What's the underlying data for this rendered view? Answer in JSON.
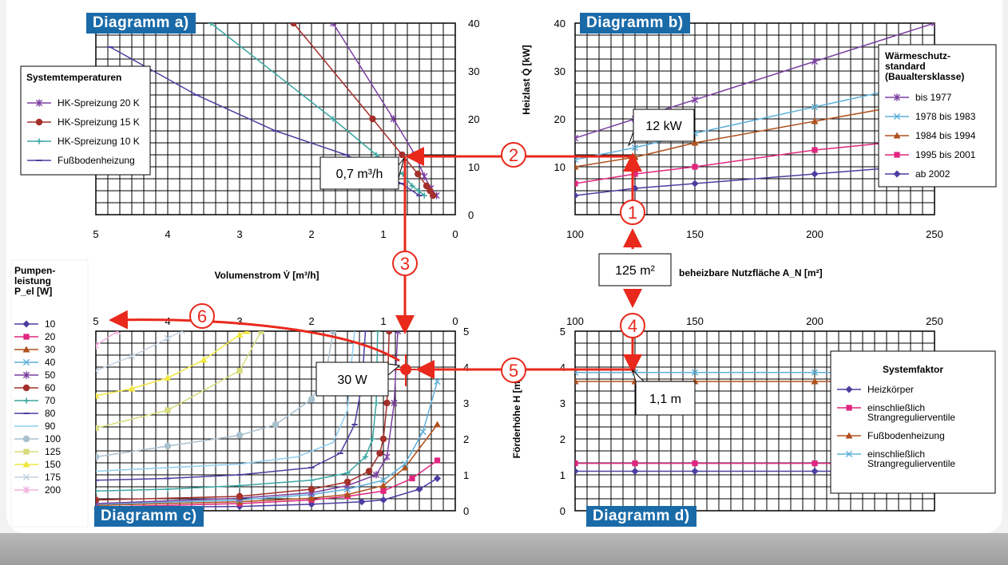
{
  "diagram_labels": {
    "a": "Diagramm a)",
    "b": "Diagramm b)",
    "c": "Diagramm c)",
    "d": "Diagramm d)"
  },
  "colors": {
    "red": "#e8291c",
    "badge": "#1a6aa8",
    "grid": "#000000"
  },
  "annotations": {
    "step_numbers": [
      "1",
      "2",
      "3",
      "4",
      "5",
      "6"
    ],
    "flow_box": "0,7 m³/h",
    "load_box": "12 kW",
    "area_box": "125 m²",
    "power_box": "30 W",
    "head_box": "1,1 m"
  },
  "chart_data": [
    {
      "id": "a",
      "type": "line",
      "xlabel": "Volumenstrom V̇ [m³/h]",
      "ylabel": "Heizlast Q̇ [kW]",
      "xlim": [
        5,
        0
      ],
      "ylim": [
        0,
        40
      ],
      "x_ticks": [
        "5",
        "4",
        "3",
        "2",
        "1",
        "0"
      ],
      "y_ticks": [
        "0",
        "10",
        "20",
        "30",
        "40"
      ],
      "legend_title": "Systemtemperaturen",
      "legend_position": "left",
      "grid": true,
      "series": [
        {
          "name": "HK-Spreizung 20 K",
          "color": "#7b3fa0",
          "marker": "star",
          "points": [
            [
              1.7,
              40
            ],
            [
              0.86,
              20
            ],
            [
              0.56,
              12.5
            ],
            [
              0.43,
              8
            ],
            [
              0.34,
              5.5
            ],
            [
              0.26,
              4
            ]
          ]
        },
        {
          "name": "HK-Spreizung 15 K",
          "color": "#a3302b",
          "marker": "circle",
          "points": [
            [
              2.25,
              40
            ],
            [
              1.15,
              20
            ],
            [
              0.74,
              12.5
            ],
            [
              0.52,
              8.5
            ],
            [
              0.4,
              6
            ],
            [
              0.35,
              5
            ],
            [
              0.31,
              4
            ]
          ]
        },
        {
          "name": "HK-Spreizung 10 K",
          "color": "#3aa6a0",
          "marker": "plus",
          "points": [
            [
              3.4,
              40
            ],
            [
              1.7,
              20
            ],
            [
              1.1,
              12.5
            ],
            [
              0.73,
              8.5
            ],
            [
              0.6,
              6
            ],
            [
              0.51,
              5
            ],
            [
              0.43,
              4
            ]
          ]
        },
        {
          "name": "Fußbodenheizung",
          "color": "#4b3ea0",
          "marker": "dash",
          "points": [
            [
              4.8,
              35
            ],
            [
              3.6,
              25
            ],
            [
              2.5,
              17.5
            ],
            [
              1.52,
              12.5
            ],
            [
              1.05,
              9
            ],
            [
              0.75,
              6.5
            ],
            [
              0.5,
              4
            ]
          ]
        }
      ]
    },
    {
      "id": "b",
      "type": "line",
      "xlabel": "beheizbare Nutzfläche A_N [m²]",
      "ylabel": "",
      "xlim": [
        100,
        250
      ],
      "ylim": [
        0,
        40
      ],
      "x_ticks": [
        "100",
        "150",
        "200",
        "250"
      ],
      "y_ticks": [
        "10",
        "20",
        "30",
        "40"
      ],
      "legend_title": "Wärmeschutz-\nstandard\n(Baualtersklasse)",
      "legend_position": "top-right",
      "grid": true,
      "series": [
        {
          "name": "bis 1977",
          "color": "#7b3fa0",
          "marker": "star",
          "points": [
            [
              100,
              16
            ],
            [
              125,
              20
            ],
            [
              150,
              24
            ],
            [
              200,
              32
            ],
            [
              250,
              40
            ]
          ]
        },
        {
          "name": "1978 bis 1983",
          "color": "#5fb0d8",
          "marker": "x",
          "points": [
            [
              100,
              11.5
            ],
            [
              125,
              14
            ],
            [
              150,
              17
            ],
            [
              200,
              22.5
            ],
            [
              250,
              28
            ]
          ]
        },
        {
          "name": "1984 bis 1994",
          "color": "#b0501c",
          "marker": "triangle",
          "points": [
            [
              100,
              10
            ],
            [
              125,
              12
            ],
            [
              150,
              15
            ],
            [
              200,
              19.5
            ],
            [
              250,
              24
            ]
          ]
        },
        {
          "name": "1995 bis 2001",
          "color": "#e0267f",
          "marker": "square",
          "points": [
            [
              100,
              6.5
            ],
            [
              125,
              8.5
            ],
            [
              150,
              10
            ],
            [
              200,
              13.5
            ],
            [
              250,
              16
            ]
          ]
        },
        {
          "name": "ab 2002",
          "color": "#4b3ea0",
          "marker": "diamond",
          "points": [
            [
              100,
              4
            ],
            [
              125,
              5.5
            ],
            [
              150,
              6.5
            ],
            [
              200,
              8.5
            ],
            [
              250,
              10.5
            ]
          ]
        }
      ]
    },
    {
      "id": "c",
      "type": "line",
      "xlabel": "",
      "ylabel": "Förderhöhe H [m]",
      "xlim": [
        5,
        0
      ],
      "ylim": [
        0,
        5
      ],
      "x_ticks": [
        "5",
        "4",
        "3",
        "2",
        "1",
        "0"
      ],
      "y_ticks": [
        "0",
        "1",
        "2",
        "3",
        "4",
        "5"
      ],
      "legend_title": "Pumpen-\nleistung\nP_el [W]",
      "legend_position": "left",
      "grid": true,
      "series": [
        {
          "name": "10",
          "color": "#4b3ea0",
          "marker": "diamond",
          "points": [
            [
              5,
              0.08
            ],
            [
              3,
              0.12
            ],
            [
              2,
              0.18
            ],
            [
              1.3,
              0.25
            ],
            [
              1,
              0.3
            ],
            [
              0.5,
              0.6
            ],
            [
              0.25,
              0.9
            ]
          ]
        },
        {
          "name": "20",
          "color": "#e0267f",
          "marker": "square",
          "points": [
            [
              5,
              0.1
            ],
            [
              3,
              0.2
            ],
            [
              2,
              0.3
            ],
            [
              1.5,
              0.4
            ],
            [
              1,
              0.55
            ],
            [
              0.6,
              0.9
            ],
            [
              0.25,
              1.4
            ]
          ]
        },
        {
          "name": "30",
          "color": "#b0501c",
          "marker": "triangle",
          "points": [
            [
              5,
              0.15
            ],
            [
              3,
              0.25
            ],
            [
              2,
              0.35
            ],
            [
              1.5,
              0.45
            ],
            [
              1,
              0.7
            ],
            [
              0.7,
              1.2
            ],
            [
              0.25,
              2.4
            ]
          ]
        },
        {
          "name": "40",
          "color": "#5fb0d8",
          "marker": "x",
          "points": [
            [
              5,
              0.18
            ],
            [
              3,
              0.3
            ],
            [
              2,
              0.45
            ],
            [
              1.5,
              0.6
            ],
            [
              1,
              0.85
            ],
            [
              0.7,
              1.3
            ],
            [
              0.45,
              2.2
            ],
            [
              0.25,
              3.6
            ]
          ]
        },
        {
          "name": "50",
          "color": "#7b3fa0",
          "marker": "star",
          "points": [
            [
              5,
              0.2
            ],
            [
              3,
              0.35
            ],
            [
              2,
              0.5
            ],
            [
              1.5,
              0.7
            ],
            [
              1.1,
              1.0
            ],
            [
              0.95,
              1.5
            ],
            [
              0.85,
              3
            ],
            [
              0.8,
              5
            ]
          ]
        },
        {
          "name": "60",
          "color": "#a3302b",
          "marker": "circle",
          "points": [
            [
              5,
              0.3
            ],
            [
              3,
              0.4
            ],
            [
              2,
              0.6
            ],
            [
              1.5,
              0.8
            ],
            [
              1.2,
              1.1
            ],
            [
              1.05,
              1.6
            ],
            [
              1.0,
              2.0
            ],
            [
              0.95,
              3
            ],
            [
              0.92,
              5
            ]
          ]
        },
        {
          "name": "70",
          "color": "#3aa6a0",
          "marker": "plus",
          "points": [
            [
              5,
              0.55
            ],
            [
              4,
              0.6
            ],
            [
              3,
              0.7
            ],
            [
              2,
              0.85
            ],
            [
              1.5,
              1.05
            ],
            [
              1.25,
              1.5
            ],
            [
              1.15,
              2.0
            ],
            [
              1.1,
              3
            ],
            [
              1.08,
              5
            ]
          ]
        },
        {
          "name": "80",
          "color": "#4b3ea0",
          "marker": "dash",
          "points": [
            [
              5,
              0.85
            ],
            [
              4,
              0.9
            ],
            [
              3,
              1.0
            ],
            [
              2.0,
              1.2
            ],
            [
              1.6,
              1.6
            ],
            [
              1.4,
              2.4
            ],
            [
              1.3,
              3.5
            ],
            [
              1.25,
              5
            ]
          ]
        },
        {
          "name": "90",
          "color": "#8ecdf0",
          "marker": "none",
          "points": [
            [
              5,
              1.1
            ],
            [
              4,
              1.2
            ],
            [
              3,
              1.3
            ],
            [
              2.2,
              1.5
            ],
            [
              1.7,
              1.9
            ],
            [
              1.5,
              2.8
            ],
            [
              1.45,
              4
            ],
            [
              1.4,
              5
            ]
          ]
        },
        {
          "name": "100",
          "color": "#a9c0ce",
          "marker": "circle",
          "points": [
            [
              5,
              1.5
            ],
            [
              4,
              1.8
            ],
            [
              3,
              2.1
            ],
            [
              2.5,
              2.4
            ],
            [
              2.0,
              3.1
            ],
            [
              1.8,
              3.8
            ],
            [
              1.7,
              5
            ]
          ]
        },
        {
          "name": "125",
          "color": "#d6dc7c",
          "marker": "square",
          "points": [
            [
              5,
              2.3
            ],
            [
              4,
              2.8
            ],
            [
              3,
              3.9
            ],
            [
              2.7,
              5
            ]
          ]
        },
        {
          "name": "150",
          "color": "#f0e640",
          "marker": "triangle",
          "points": [
            [
              5,
              3.2
            ],
            [
              4.5,
              3.4
            ],
            [
              4,
              3.7
            ],
            [
              3.5,
              4.2
            ],
            [
              3,
              4.9
            ],
            [
              2.9,
              5
            ]
          ]
        },
        {
          "name": "175",
          "color": "#c3d1e0",
          "marker": "x",
          "points": [
            [
              5,
              3.9
            ],
            [
              4.5,
              4.3
            ],
            [
              4,
              4.8
            ],
            [
              3.8,
              5
            ]
          ]
        },
        {
          "name": "200",
          "color": "#f0b0e0",
          "marker": "star",
          "points": [
            [
              5,
              4.6
            ],
            [
              4.7,
              5
            ]
          ]
        }
      ]
    },
    {
      "id": "d",
      "type": "line",
      "xlabel": "",
      "ylabel": "",
      "xlim": [
        100,
        250
      ],
      "ylim": [
        0,
        5
      ],
      "x_ticks": [
        "100",
        "150",
        "200",
        "250"
      ],
      "y_ticks": [
        "0",
        "1",
        "2",
        "3",
        "4",
        "5"
      ],
      "legend_title": "Systemfaktor",
      "legend_position": "right",
      "grid": true,
      "series": [
        {
          "name": "Heizkörper",
          "color": "#4b3ea0",
          "marker": "diamond",
          "points": [
            [
              100,
              1.1
            ],
            [
              125,
              1.1
            ],
            [
              150,
              1.1
            ],
            [
              200,
              1.1
            ],
            [
              250,
              1.1
            ]
          ]
        },
        {
          "name": "einschließlich\nStrangregulierventile",
          "color": "#e0267f",
          "marker": "square",
          "points": [
            [
              100,
              1.32
            ],
            [
              125,
              1.32
            ],
            [
              150,
              1.32
            ],
            [
              200,
              1.32
            ],
            [
              250,
              1.32
            ]
          ]
        },
        {
          "name": "Fußbodenheizung",
          "color": "#b0501c",
          "marker": "triangle",
          "points": [
            [
              100,
              3.6
            ],
            [
              125,
              3.6
            ],
            [
              150,
              3.6
            ],
            [
              200,
              3.6
            ],
            [
              250,
              3.6
            ]
          ]
        },
        {
          "name": "einschließlich\nStrangregulierventile",
          "color": "#5fb0d8",
          "marker": "x",
          "points": [
            [
              100,
              3.85
            ],
            [
              125,
              3.85
            ],
            [
              150,
              3.85
            ],
            [
              200,
              3.85
            ],
            [
              250,
              3.85
            ]
          ]
        }
      ]
    }
  ]
}
